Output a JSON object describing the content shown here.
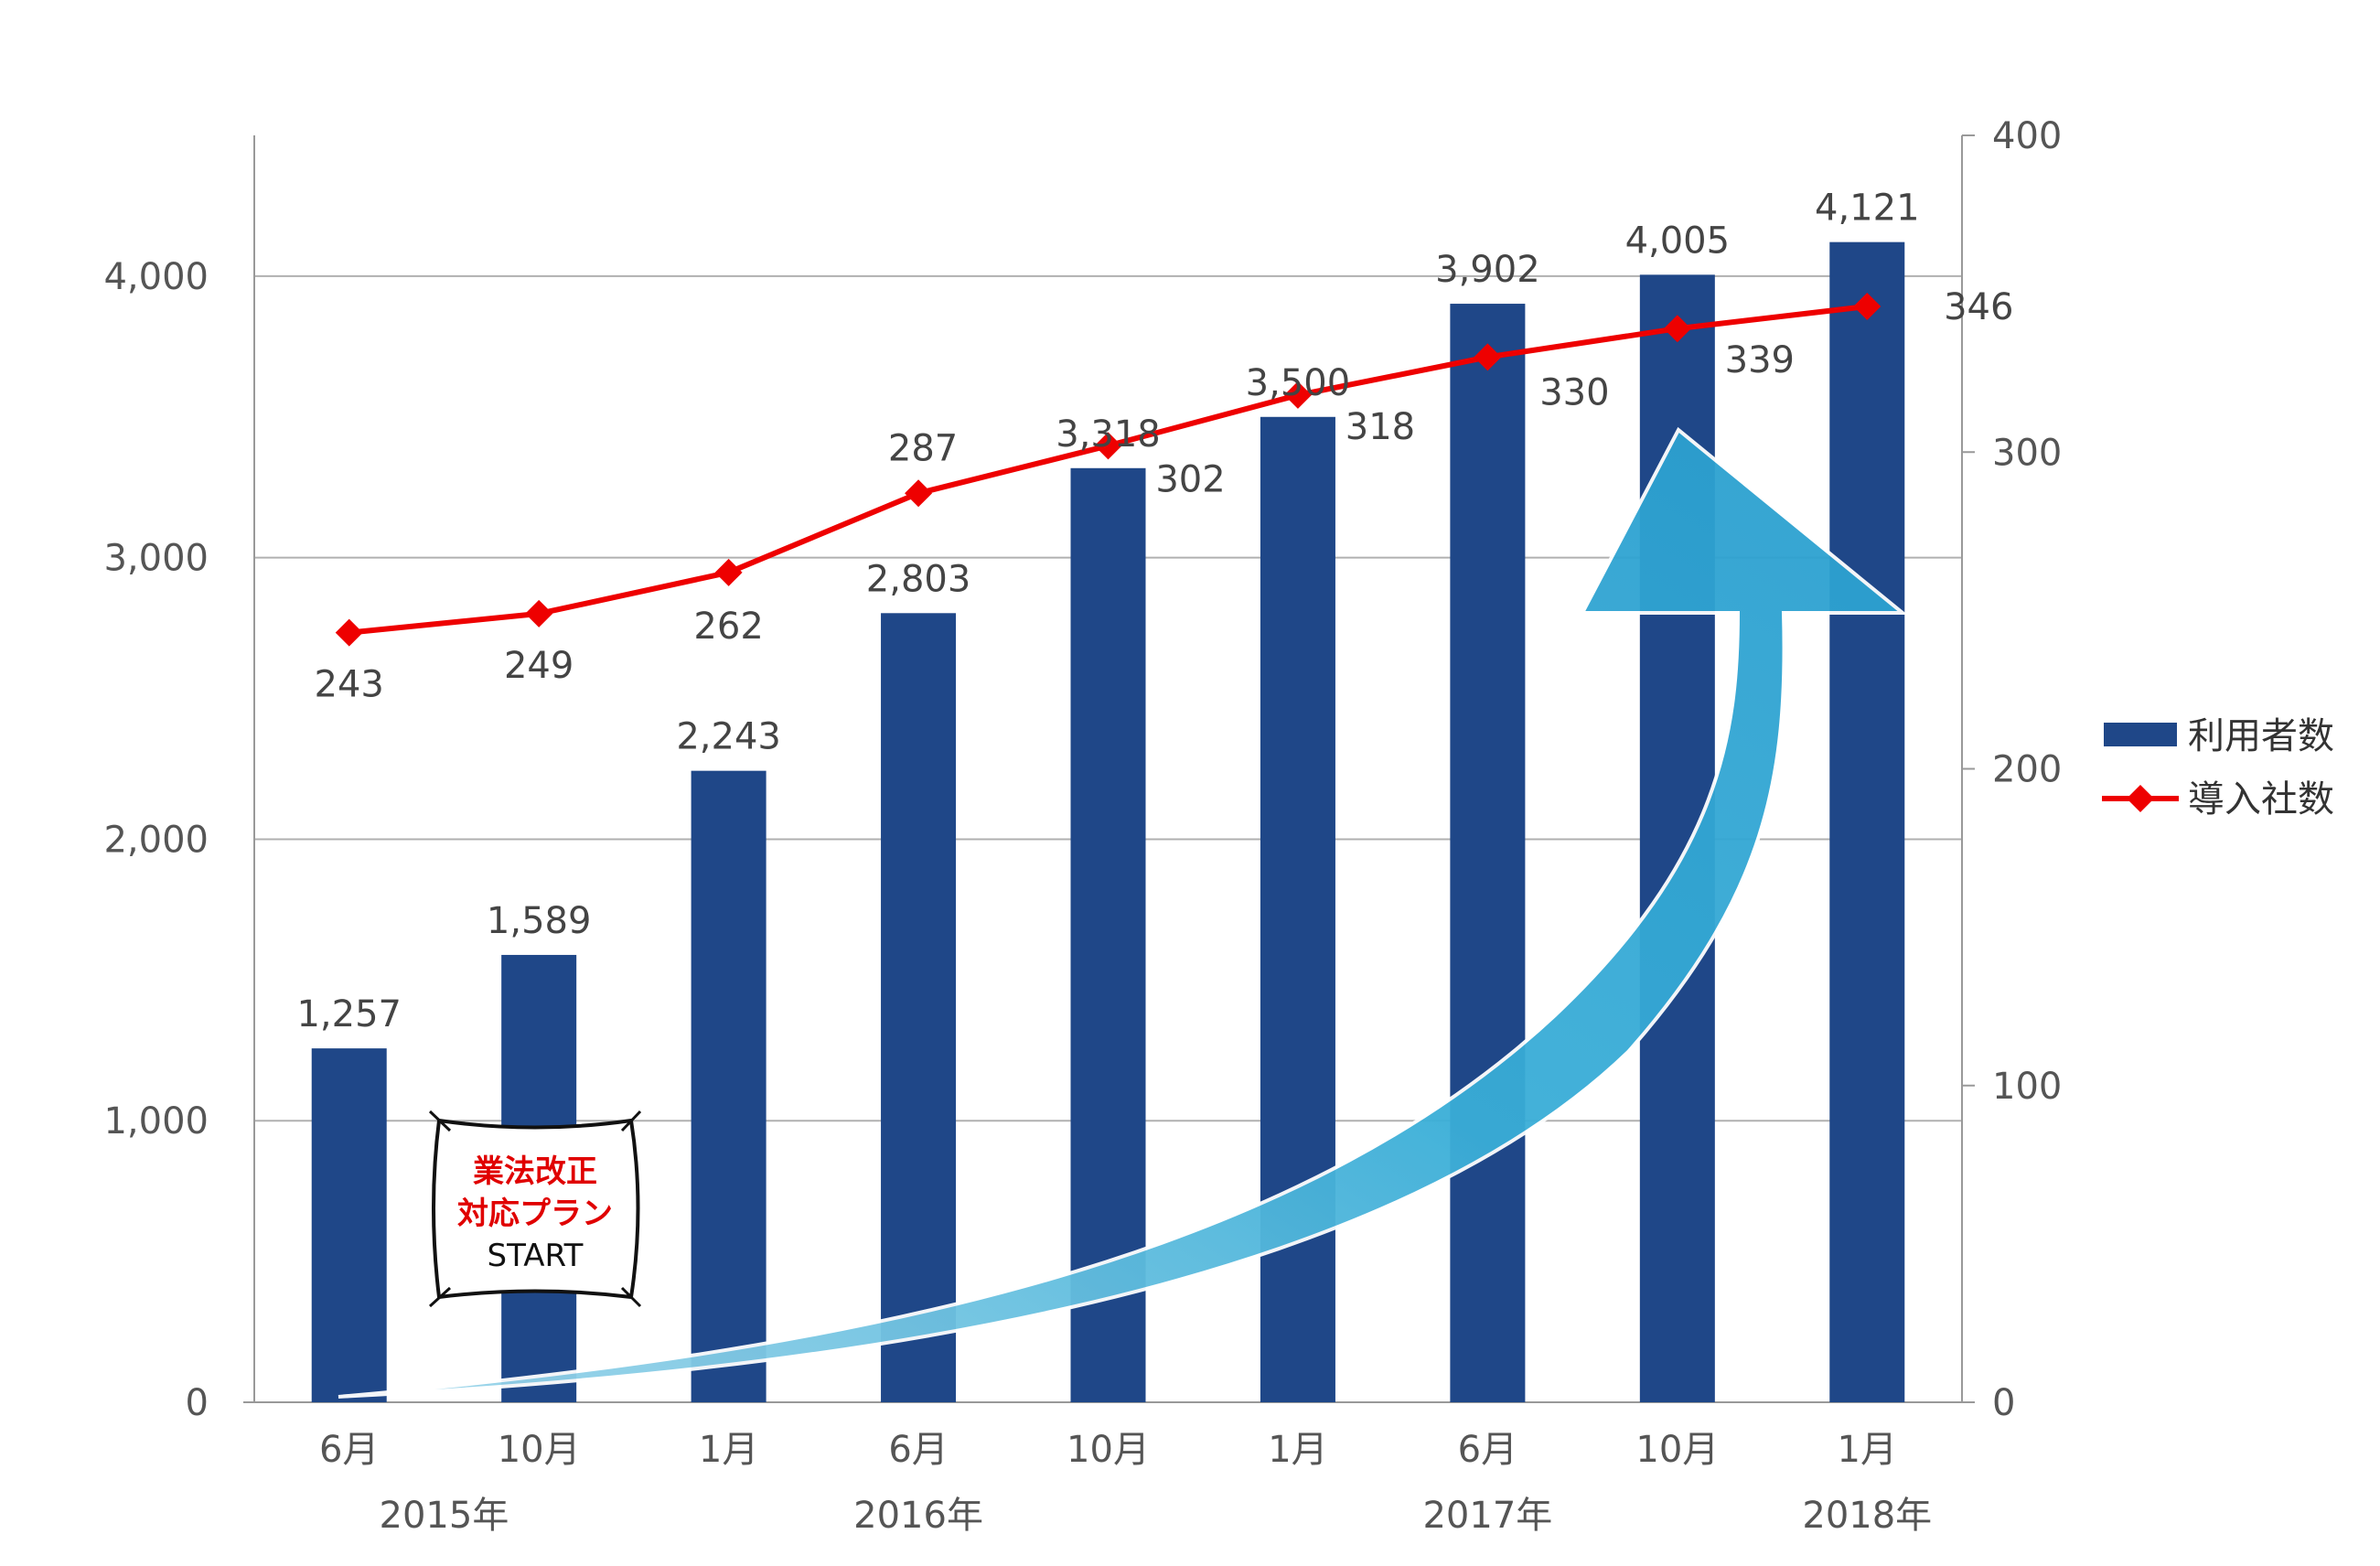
{
  "chart_data": {
    "type": "bar+line",
    "categories": [
      "6月",
      "10月",
      "1月",
      "6月",
      "10月",
      "1月",
      "6月",
      "10月",
      "1月"
    ],
    "year_labels": [
      {
        "label": "2015年",
        "index": 0.5
      },
      {
        "label": "2016年",
        "index": 3
      },
      {
        "label": "2017年",
        "index": 6
      },
      {
        "label": "2018年",
        "index": 8
      }
    ],
    "series": [
      {
        "name": "利用者数",
        "type": "bar",
        "axis": "left",
        "color": "#1f4788",
        "values": [
          1257,
          1589,
          2243,
          2803,
          3318,
          3500,
          3902,
          4005,
          4121
        ],
        "labels": [
          "1,257",
          "1,589",
          "2,243",
          "2,803",
          "3,318",
          "3,500",
          "3,902",
          "4,005",
          "4,121"
        ]
      },
      {
        "name": "導入社数",
        "type": "line",
        "axis": "right",
        "color": "#ee0000",
        "values": [
          243,
          249,
          262,
          287,
          302,
          318,
          330,
          339,
          346
        ],
        "labels": [
          "243",
          "249",
          "262",
          "287",
          "302",
          "318",
          "330",
          "339",
          "346"
        ]
      }
    ],
    "y_left": {
      "min": 0,
      "max": 4500,
      "ticks": [
        0,
        1000,
        2000,
        3000,
        4000
      ],
      "tick_labels": [
        "0",
        "1,000",
        "2,000",
        "3,000",
        "4,000"
      ]
    },
    "y_right": {
      "min": 0,
      "max": 400,
      "ticks": [
        0,
        100,
        200,
        300,
        400
      ],
      "tick_labels": [
        "0",
        "100",
        "200",
        "300",
        "400"
      ]
    },
    "grid": true,
    "legend_position": "right"
  },
  "callout": {
    "line1": "業法改正",
    "line2": "対応プラン",
    "line3": "START"
  },
  "colors": {
    "bar": "#1f4788",
    "line": "#ee0000",
    "arrow": "#35a8d4",
    "grid": "#b0b0b0"
  }
}
